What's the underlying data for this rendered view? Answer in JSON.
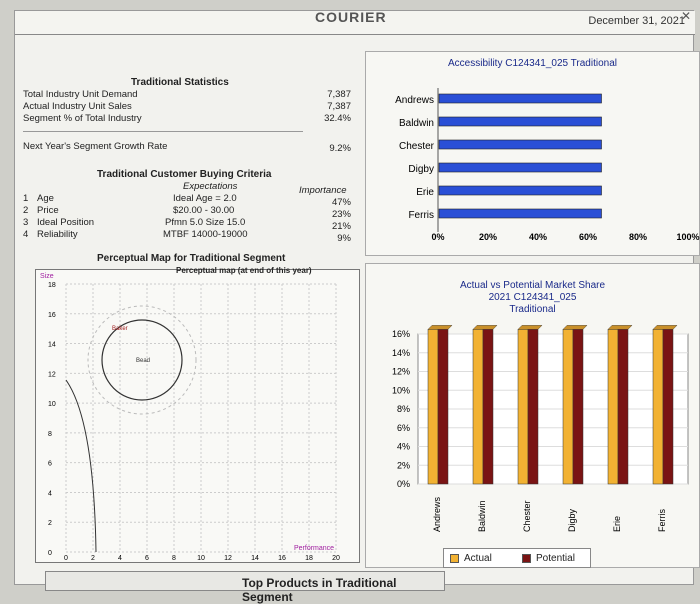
{
  "header": {
    "cut_title": "COURIER",
    "date": "December 31, 2021"
  },
  "stats": {
    "title": "Traditional Statistics",
    "rows": [
      {
        "label": "Total Industry Unit Demand",
        "value": "7,387"
      },
      {
        "label": "Actual Industry Unit Sales",
        "value": "7,387"
      },
      {
        "label": "Segment % of Total Industry",
        "value": "32.4%"
      }
    ],
    "growth_label": "Next Year's Segment Growth Rate",
    "growth_value": "9.2%"
  },
  "criteria": {
    "title": "Traditional Customer Buying Criteria",
    "expectations_header": "Expectations",
    "importance_header": "Importance",
    "items": [
      {
        "num": "1",
        "name": "Age",
        "expectation": "Ideal Age = 2.0",
        "importance": "47%"
      },
      {
        "num": "2",
        "name": "Price",
        "expectation": "$20.00 - 30.00",
        "importance": "23%"
      },
      {
        "num": "3",
        "name": "Ideal Position",
        "expectation": "Pfmn 5.0 Size 15.0",
        "importance": "21%"
      },
      {
        "num": "4",
        "name": "Reliability",
        "expectation": "MTBF 14000-19000",
        "importance": "9%"
      }
    ]
  },
  "perceptual": {
    "title": "Perceptual Map for Traditional Segment",
    "subtitle": "Perceptual map (at end of this year)",
    "y_label": "Size",
    "x_label": "Performance",
    "y_ticks": [
      "0",
      "2",
      "4",
      "6",
      "8",
      "10",
      "12",
      "14",
      "16",
      "18"
    ],
    "x_ticks": [
      "0",
      "2",
      "4",
      "6",
      "8",
      "10",
      "12",
      "14",
      "16",
      "18",
      "20"
    ],
    "products": [
      "Baker",
      "Bead"
    ]
  },
  "accessibility_chart": {
    "title": "Accessibility C124341_025 Traditional",
    "x_ticks": [
      "0%",
      "20%",
      "40%",
      "60%",
      "80%",
      "100%"
    ],
    "color": "#2a4fd6"
  },
  "market_share_chart": {
    "title_line1": "Actual vs Potential Market Share",
    "title_line2": "2021 C124341_025",
    "title_line3": "Traditional",
    "y_ticks": [
      "0%",
      "2%",
      "4%",
      "6%",
      "8%",
      "10%",
      "12%",
      "14%",
      "16%"
    ],
    "legend": {
      "actual": "Actual",
      "potential": "Potential"
    },
    "actual_color": "#f2b233",
    "potential_color": "#7a1414"
  },
  "chart_data": [
    {
      "type": "bar",
      "title": "Accessibility C124341_025 Traditional",
      "categories": [
        "Andrews",
        "Baldwin",
        "Chester",
        "Digby",
        "Erie",
        "Ferris"
      ],
      "values": [
        65,
        65,
        65,
        65,
        65,
        65
      ],
      "xlim": [
        0,
        100
      ],
      "orientation": "horizontal"
    },
    {
      "type": "bar",
      "title": "Actual vs Potential Market Share 2021 C124341_025 Traditional",
      "categories": [
        "Andrews",
        "Baldwin",
        "Chester",
        "Digby",
        "Erie",
        "Ferris"
      ],
      "series": [
        {
          "name": "Actual",
          "values": [
            16.5,
            16.5,
            16.5,
            16.5,
            16.5,
            16.5
          ]
        },
        {
          "name": "Potential",
          "values": [
            16.5,
            16.5,
            16.5,
            16.5,
            16.5,
            16.5
          ]
        }
      ],
      "ylim": [
        0,
        16
      ]
    }
  ],
  "bottom": {
    "label": "Top Products in Traditional Segment"
  }
}
